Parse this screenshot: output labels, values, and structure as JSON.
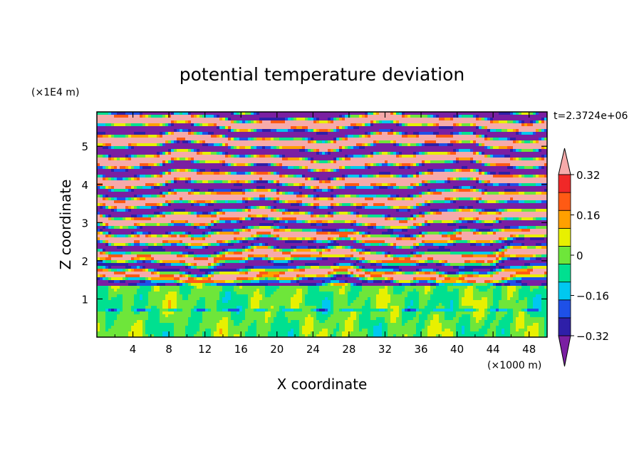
{
  "chart_data": {
    "type": "heatmap",
    "title": "potential temperature deviation",
    "xlabel": "X coordinate",
    "ylabel": "Z coordinate",
    "x_unit": "(×1000 m)",
    "y_unit": "(×1E4 m)",
    "time_label": "t=2.3724e+06",
    "xlim": [
      0,
      50
    ],
    "ylim": [
      0,
      5.9
    ],
    "x_ticks": [
      "4",
      "8",
      "12",
      "16",
      "20",
      "24",
      "28",
      "32",
      "36",
      "40",
      "44",
      "48"
    ],
    "x_tick_values": [
      4,
      8,
      12,
      16,
      20,
      24,
      28,
      32,
      36,
      40,
      44,
      48
    ],
    "y_ticks": [
      "1",
      "2",
      "3",
      "4",
      "5"
    ],
    "y_tick_values": [
      1,
      2,
      3,
      4,
      5
    ],
    "colorbar": {
      "labels": [
        "0.32",
        "0.16",
        "0",
        "−0.16",
        "−0.32"
      ],
      "label_values": [
        0.32,
        0.16,
        0,
        -0.16,
        -0.32
      ],
      "levels": [
        -0.4,
        -0.32,
        -0.24,
        -0.16,
        -0.08,
        0,
        0.08,
        0.16,
        0.24,
        0.32,
        0.4
      ],
      "colors": [
        "#7a1fa2",
        "#2e1fa8",
        "#1e50e8",
        "#00c8f0",
        "#00e090",
        "#6ee63a",
        "#e8f000",
        "#ffa000",
        "#ff5a14",
        "#f02828",
        "#f6aaaa"
      ],
      "extend": "both"
    }
  }
}
